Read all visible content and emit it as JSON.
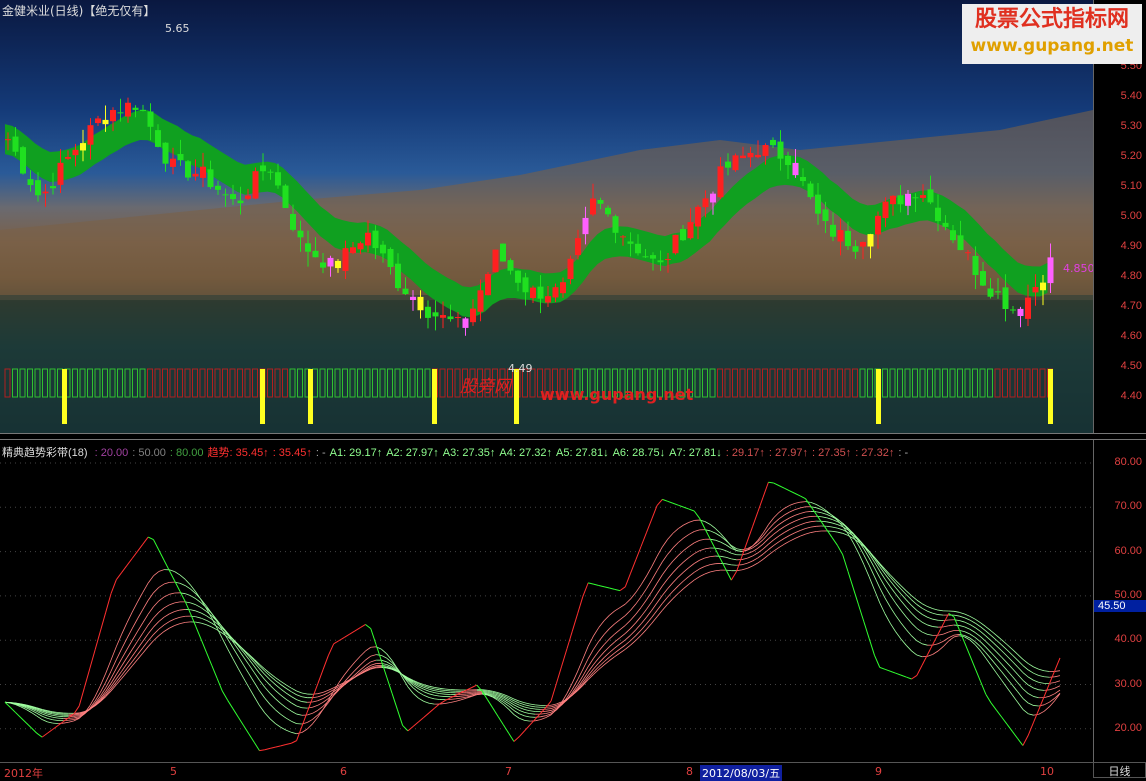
{
  "header": {
    "title": "金健米业(日线)【绝无仅有】"
  },
  "logo": {
    "title": "股票公式指标网",
    "url": "www.gupang.net"
  },
  "watermark": {
    "cn": "股旁网",
    "url": "www.gupang.net"
  },
  "main_chart": {
    "high_label": "5.65",
    "low_label": "4.49",
    "last_price": "4.850",
    "y_labels": [
      "5.50",
      "5.40",
      "5.30",
      "5.20",
      "5.10",
      "5.00",
      "4.90",
      "4.80",
      "4.70",
      "4.60",
      "4.50",
      "4.40"
    ],
    "colors": {
      "up": "#ff2020",
      "down": "#20e020",
      "band": "#10a020",
      "band2": "#ff7010",
      "signal": "#ffff20",
      "special": "#ff60ff"
    }
  },
  "indicator": {
    "name": "精典趋势彩带(18)",
    "levels": [
      {
        "text": ": 20.00",
        "color": "#a040a0"
      },
      {
        "text": ": 50.00",
        "color": "#808080"
      },
      {
        "text": ": 80.00",
        "color": "#40a040"
      }
    ],
    "items": [
      {
        "text": "趋势: 35.45↑",
        "color": "#ff3030"
      },
      {
        "text": ": 35.45↑",
        "color": "#ff3030"
      },
      {
        "text": ": -",
        "color": "#aaa"
      },
      {
        "text": "A1: 29.17↑",
        "color": "#90ff90"
      },
      {
        "text": "A2: 27.97↑",
        "color": "#90ff90"
      },
      {
        "text": "A3: 27.35↑",
        "color": "#90ff90"
      },
      {
        "text": "A4: 27.32↑",
        "color": "#90ff90"
      },
      {
        "text": "A5: 27.81↓",
        "color": "#90ff90"
      },
      {
        "text": "A6: 28.75↓",
        "color": "#90ff90"
      },
      {
        "text": "A7: 27.81↓",
        "color": "#90ff90"
      },
      {
        "text": ": 29.17↑",
        "color": "#d05050"
      },
      {
        "text": ": 27.97↑",
        "color": "#d05050"
      },
      {
        "text": ": 27.35↑",
        "color": "#d05050"
      },
      {
        "text": ": 27.32↑",
        "color": "#d05050"
      },
      {
        "text": ": -",
        "color": "#aaa"
      }
    ],
    "y_labels": [
      "80.00",
      "70.00",
      "60.00",
      "50.00",
      "40.00",
      "30.00",
      "20.00"
    ],
    "cursor_value": "45.50"
  },
  "x_axis": {
    "labels": [
      "2012年",
      "5",
      "6",
      "7",
      "8",
      "9",
      "10"
    ],
    "cursor_date": "2012/08/03/五",
    "period": "日线"
  },
  "chart_data": [
    {
      "type": "candlestick",
      "title": "金健米业(日线)",
      "ylim": [
        4.35,
        5.72
      ],
      "close_keypoints": [
        5.26,
        5.06,
        5.22,
        5.35,
        5.38,
        5.17,
        5.14,
        5.04,
        5.18,
        4.91,
        4.83,
        4.95,
        4.78,
        4.68,
        4.63,
        4.88,
        4.75,
        4.75,
        5.06,
        4.93,
        4.83,
        5.0,
        5.16,
        5.23,
        5.2,
        4.97,
        4.91,
        5.04,
        5.1,
        4.94,
        4.78,
        4.68,
        4.85
      ],
      "high": 5.65,
      "low": 4.49,
      "last": 4.85
    },
    {
      "type": "line",
      "title": "精典趋势彩带(18)",
      "ylim": [
        15,
        85
      ],
      "trend_keypoints": [
        26,
        18,
        24,
        53,
        64,
        48,
        28,
        15,
        17,
        39,
        44,
        19,
        26,
        30,
        17,
        26,
        53,
        51,
        72,
        69,
        53,
        76,
        72,
        60,
        34,
        31,
        47,
        27,
        16,
        36
      ]
    }
  ]
}
